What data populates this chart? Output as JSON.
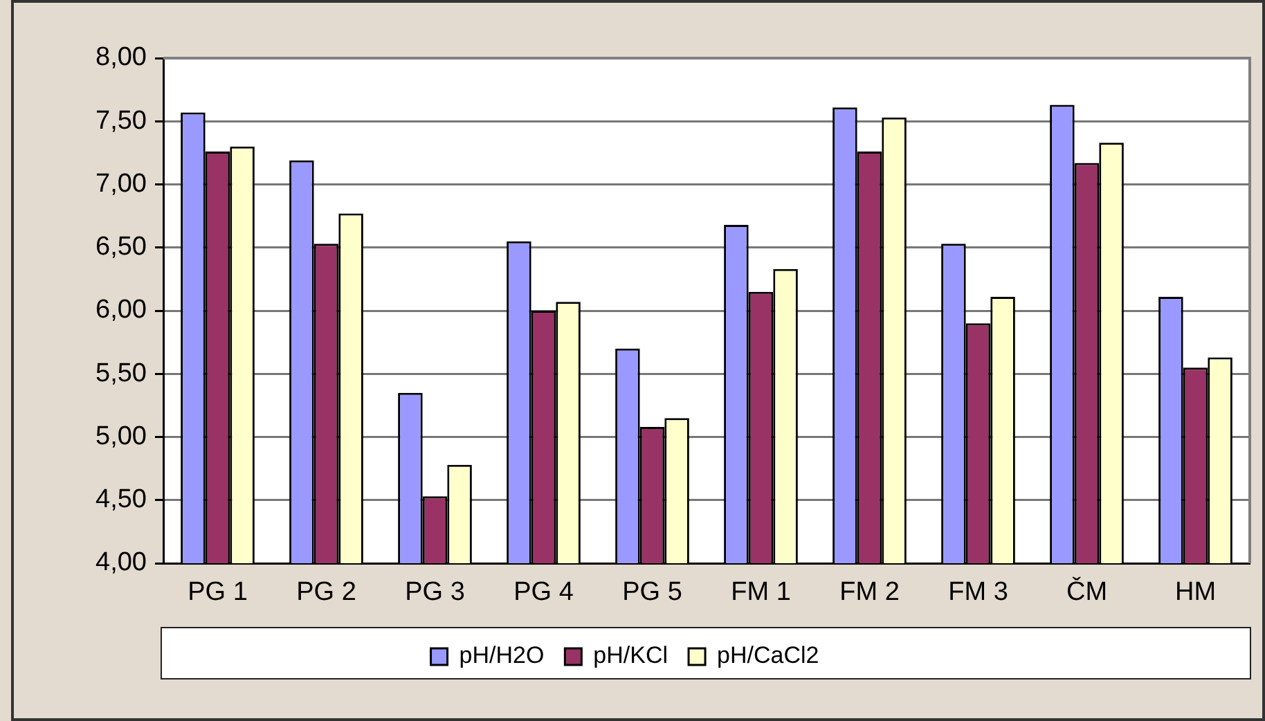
{
  "chart_data": {
    "type": "bar",
    "categories": [
      "PG 1",
      "PG 2",
      "PG 3",
      "PG 4",
      "PG 5",
      "FM 1",
      "FM 2",
      "FM 3",
      "ČM",
      "HM"
    ],
    "series": [
      {
        "name": "pH/H2O",
        "color": "#9999ff",
        "values": [
          7.57,
          7.19,
          5.35,
          6.55,
          5.7,
          6.68,
          7.61,
          6.53,
          7.63,
          6.11
        ]
      },
      {
        "name": "pH/KCl",
        "color": "#993366",
        "values": [
          7.26,
          6.53,
          4.53,
          6.0,
          5.08,
          6.15,
          7.26,
          5.9,
          7.17,
          5.55
        ]
      },
      {
        "name": "pH/CaCl2",
        "color": "#ffffcc",
        "values": [
          7.3,
          6.77,
          4.78,
          6.07,
          5.15,
          6.33,
          7.53,
          6.11,
          7.33,
          5.63
        ]
      }
    ],
    "ylim": [
      4,
      8
    ],
    "yticks": [
      {
        "value": 4,
        "label": "4,00"
      },
      {
        "value": 4.5,
        "label": "4,50"
      },
      {
        "value": 5,
        "label": "5,00"
      },
      {
        "value": 5.5,
        "label": "5,50"
      },
      {
        "value": 6,
        "label": "6,00"
      },
      {
        "value": 6.5,
        "label": "6,50"
      },
      {
        "value": 7,
        "label": "7,00"
      },
      {
        "value": 7.5,
        "label": "7,50"
      },
      {
        "value": 8,
        "label": "8,00"
      }
    ],
    "grid": "y",
    "legend": "bottom"
  }
}
